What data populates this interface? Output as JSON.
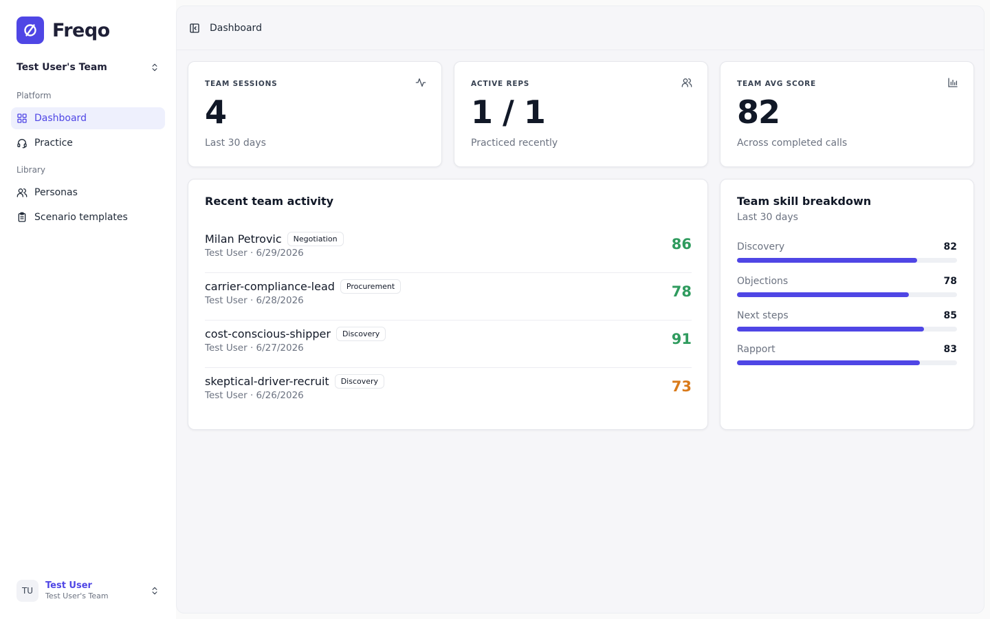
{
  "brand": {
    "name": "Freqo",
    "logo_icon": "ban-circle-icon",
    "accent": "#4f46e5"
  },
  "team_switcher": {
    "label": "Test User's Team",
    "icon": "chevrons-up-down-icon"
  },
  "sidebar": {
    "platform_label": "Platform",
    "library_label": "Library",
    "platform_items": [
      {
        "label": "Dashboard",
        "icon": "grid-icon",
        "active": true
      },
      {
        "label": "Practice",
        "icon": "headset-icon",
        "active": false
      }
    ],
    "library_items": [
      {
        "label": "Personas",
        "icon": "users-icon"
      },
      {
        "label": "Scenario templates",
        "icon": "clipboard-icon"
      }
    ]
  },
  "user": {
    "initials": "TU",
    "name": "Test User",
    "team": "Test User's Team"
  },
  "topbar": {
    "toggle_icon": "panel-left-icon",
    "title": "Dashboard"
  },
  "stats": [
    {
      "label": "TEAM SESSIONS",
      "value": "4",
      "sub": "Last 30 days",
      "icon": "activity-icon"
    },
    {
      "label": "ACTIVE REPS",
      "value": "1 / 1",
      "sub": "Practiced recently",
      "icon": "users-icon"
    },
    {
      "label": "TEAM AVG SCORE",
      "value": "82",
      "sub": "Across completed calls",
      "icon": "bar-chart-icon"
    }
  ],
  "activity": {
    "title": "Recent team activity",
    "rows": [
      {
        "name": "Milan Petrovic",
        "tag": "Negotiation",
        "meta": "Test User · 6/29/2026",
        "score": "86",
        "score_color": "#2f9b5e"
      },
      {
        "name": "carrier-compliance-lead",
        "tag": "Procurement",
        "meta": "Test User · 6/28/2026",
        "score": "78",
        "score_color": "#2f9b5e"
      },
      {
        "name": "cost-conscious-shipper",
        "tag": "Discovery",
        "meta": "Test User · 6/27/2026",
        "score": "91",
        "score_color": "#2f9b5e"
      },
      {
        "name": "skeptical-driver-recruit",
        "tag": "Discovery",
        "meta": "Test User · 6/26/2026",
        "score": "73",
        "score_color": "#d97a1a"
      }
    ]
  },
  "skills": {
    "title": "Team skill breakdown",
    "subtitle": "Last 30 days",
    "items": [
      {
        "name": "Discovery",
        "value": "82",
        "percent": 82
      },
      {
        "name": "Objections",
        "value": "78",
        "percent": 78
      },
      {
        "name": "Next steps",
        "value": "85",
        "percent": 85
      },
      {
        "name": "Rapport",
        "value": "83",
        "percent": 83
      }
    ]
  }
}
